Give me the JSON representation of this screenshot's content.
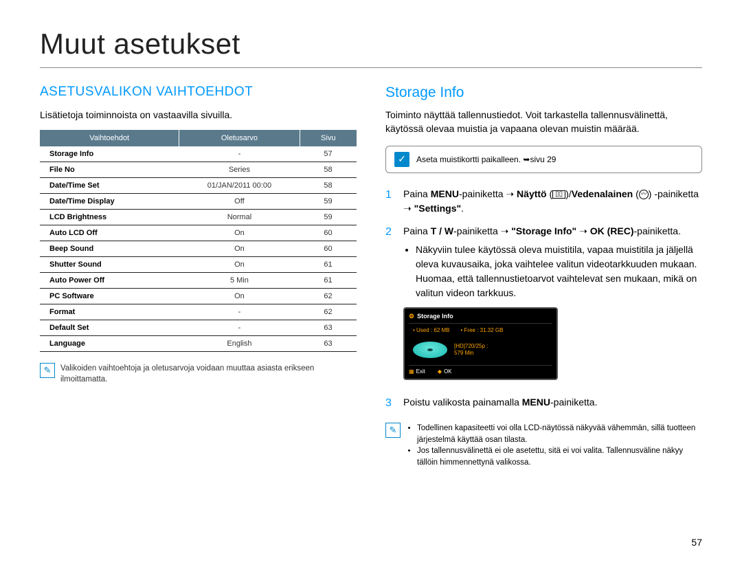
{
  "pageTitle": "Muut asetukset",
  "pageNumber": "57",
  "left": {
    "heading": "ASETUSVALIKON VAIHTOEHDOT",
    "intro": "Lisätietoja toiminnoista on vastaavilla sivuilla.",
    "table": {
      "headers": [
        "Vaihtoehdot",
        "Oletusarvo",
        "Sivu"
      ],
      "rows": [
        [
          "Storage Info",
          "-",
          "57"
        ],
        [
          "File No",
          "Series",
          "58"
        ],
        [
          "Date/Time Set",
          "01/JAN/2011 00:00",
          "58"
        ],
        [
          "Date/Time Display",
          "Off",
          "59"
        ],
        [
          "LCD Brightness",
          "Normal",
          "59"
        ],
        [
          "Auto LCD Off",
          "On",
          "60"
        ],
        [
          "Beep Sound",
          "On",
          "60"
        ],
        [
          "Shutter Sound",
          "On",
          "61"
        ],
        [
          "Auto Power Off",
          "5 Min",
          "61"
        ],
        [
          "PC Software",
          "On",
          "62"
        ],
        [
          "Format",
          "-",
          "62"
        ],
        [
          "Default Set",
          "-",
          "63"
        ],
        [
          "Language",
          "English",
          "63"
        ]
      ]
    },
    "note": "Valikoiden vaihtoehtoja ja oletusarvoja voidaan muuttaa asiasta erikseen ilmoittamatta."
  },
  "right": {
    "heading": "Storage Info",
    "intro": "Toiminto näyttää tallennustiedot. Voit tarkastella tallennusvälinettä, käytössä olevaa muistia ja vapaana olevan muistin määrää.",
    "callout": "Aseta muistikortti paikalleen. ➥sivu 29",
    "step1_a": "Paina ",
    "step1_b": "MENU",
    "step1_c": "-painiketta ➝ ",
    "step1_d": "Näyttö",
    "step1_e": " (",
    "step1_f": ")/",
    "step1_g": "Vedenalainen",
    "step1_h": " (",
    "step1_i": ") -painiketta ➝ ",
    "step1_j": "\"Settings\"",
    "step1_k": ".",
    "step2_a": "Paina ",
    "step2_b": "T / W",
    "step2_c": "-painiketta ➝ ",
    "step2_d": "\"Storage Info\"",
    "step2_e": " ➝ ",
    "step2_f": "OK (REC)",
    "step2_g": "-painiketta.",
    "step2_bullet": "Näkyviin tulee käytössä oleva muistitila, vapaa muistitila ja jäljellä oleva kuvausaika, joka vaihtelee valitun videotarkkuuden mukaan. Huomaa, että tallennustietoarvot vaihtelevat sen mukaan, mikä on valitun videon tarkkuus.",
    "lcd": {
      "title": "Storage Info",
      "used": "• Used : 62 MB",
      "free": "• Free : 31.32 GB",
      "res1": "[HD]720/25p :",
      "res2": "579 Min",
      "exit": "Exit",
      "ok": "OK"
    },
    "step3_a": "Poistu valikosta painamalla ",
    "step3_b": "MENU",
    "step3_c": "-painiketta.",
    "footnotes": [
      "Todellinen kapasiteetti voi olla LCD-näytössä näkyvää vähemmän, sillä tuotteen järjestelmä käyttää osan tilasta.",
      "Jos tallennusvälinettä ei ole asetettu, sitä ei voi valita. Tallennusväline näkyy tällöin himmennettynä valikossa."
    ]
  },
  "colors": {
    "accent": "#0099ff",
    "tableHeaderBg": "#5a7a8c",
    "lcdAccent": "#ffa500",
    "disc": "#2fc7bd"
  }
}
